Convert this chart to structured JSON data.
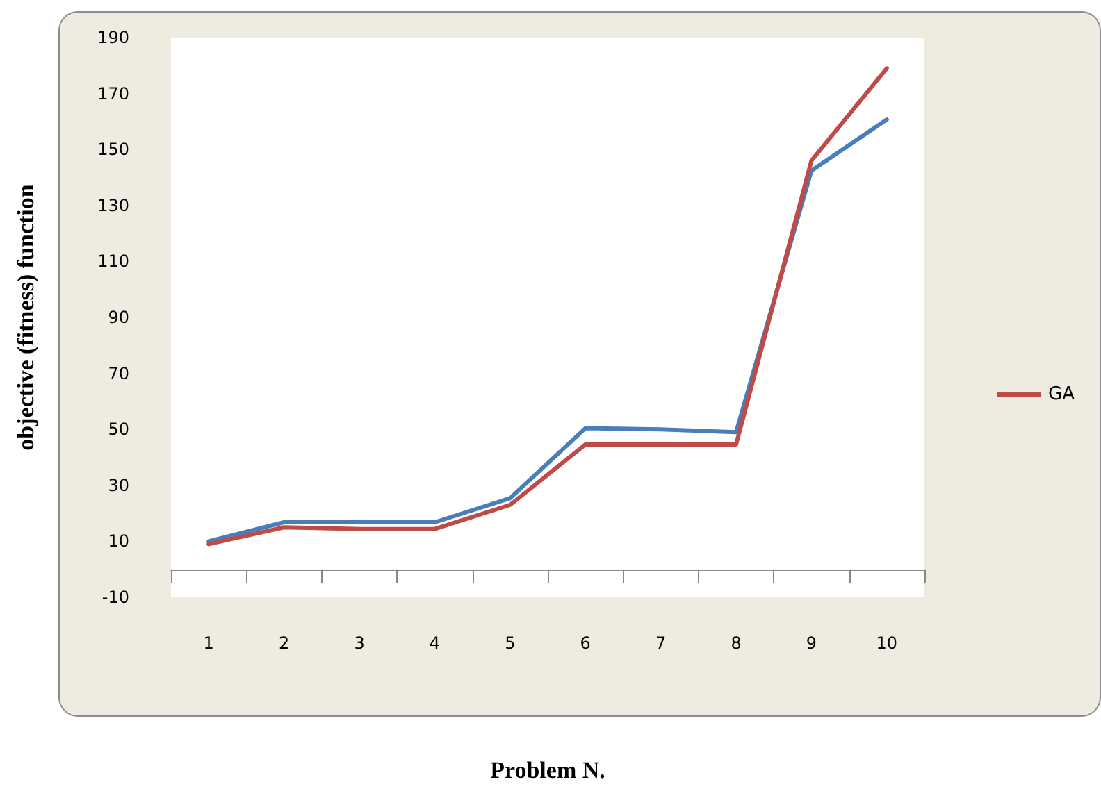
{
  "chart_data": {
    "type": "line",
    "xlabel": "Problem N.",
    "ylabel": "objective (fitness) function",
    "categories": [
      "1",
      "2",
      "3",
      "4",
      "5",
      "6",
      "7",
      "8",
      "9",
      "10"
    ],
    "series": [
      {
        "color": "#4a7ebb",
        "values": [
          10,
          16.8,
          16.8,
          16.8,
          25.4,
          50.4,
          50,
          49,
          142.4,
          160.7
        ]
      },
      {
        "name": "GA",
        "color": "#be4b48",
        "values": [
          9,
          15,
          14.4,
          14.4,
          23,
          44.6,
          44.6,
          44.6,
          146,
          179
        ]
      }
    ],
    "ylim": [
      -10,
      190
    ],
    "yticks": [
      -10,
      10,
      30,
      50,
      70,
      90,
      110,
      130,
      150,
      170,
      190
    ],
    "grid": false,
    "legend": "right",
    "marker": "none",
    "line_style": "solid"
  }
}
